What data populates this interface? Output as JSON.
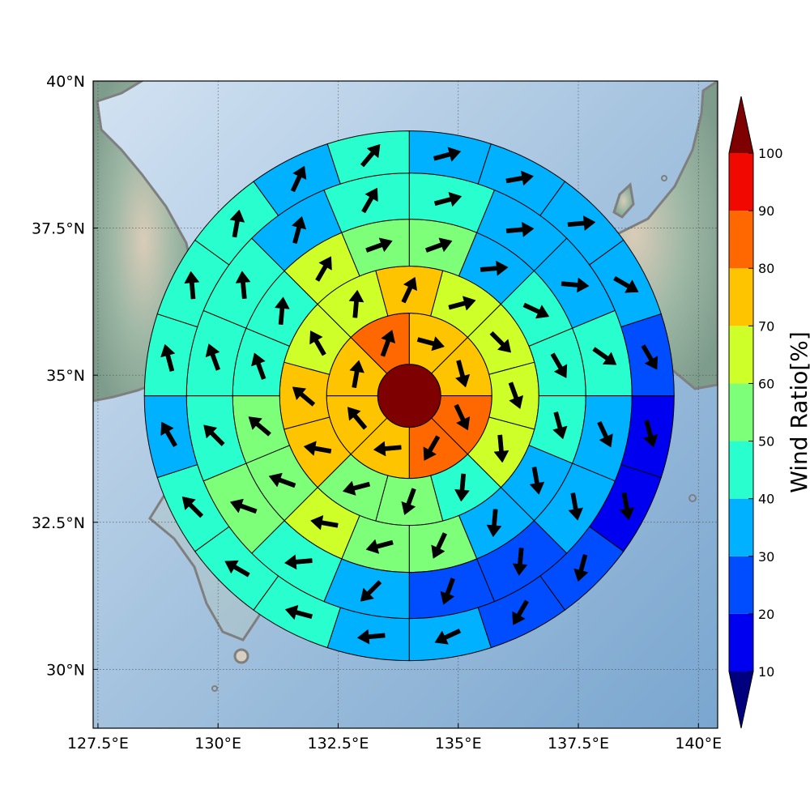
{
  "chart_data": {
    "type": "heatmap",
    "subtype": "polar-sector-map-with-wind-vectors",
    "title": "",
    "xlabel": "",
    "ylabel": "",
    "xlim": [
      127.4,
      140.4
    ],
    "ylim": [
      29.0,
      40.0
    ],
    "x_ticks": [
      127.5,
      130,
      132.5,
      135,
      137.5,
      140
    ],
    "x_tick_labels": [
      "127.5°E",
      "130°E",
      "132.5°E",
      "135°E",
      "137.5°E",
      "140°E"
    ],
    "y_ticks": [
      30,
      32.5,
      35,
      37.5,
      40
    ],
    "y_tick_labels": [
      "30°N",
      "32.5°N",
      "35°N",
      "37.5°N",
      "40°N"
    ],
    "grid": true,
    "background": "shaded-relief map with coastlines",
    "center": {
      "lon": 133.98,
      "lat": 34.65
    },
    "colorbar": {
      "label": "Wind Ratio[%]",
      "ticks": [
        10,
        20,
        30,
        40,
        50,
        60,
        70,
        80,
        90,
        100
      ],
      "extend": "both",
      "levels": [
        {
          "min": null,
          "max": 10,
          "color": "#00007f"
        },
        {
          "min": 10,
          "max": 20,
          "color": "#0000f1"
        },
        {
          "min": 20,
          "max": 30,
          "color": "#004dff"
        },
        {
          "min": 30,
          "max": 40,
          "color": "#00b1ff"
        },
        {
          "min": 40,
          "max": 50,
          "color": "#29ffce"
        },
        {
          "min": 50,
          "max": 60,
          "color": "#7dff7a"
        },
        {
          "min": 60,
          "max": 70,
          "color": "#ceff29"
        },
        {
          "min": 70,
          "max": 80,
          "color": "#ffc400"
        },
        {
          "min": 80,
          "max": 90,
          "color": "#ff6800"
        },
        {
          "min": 90,
          "max": 100,
          "color": "#f10800"
        },
        {
          "min": 100,
          "max": null,
          "color": "#7f0000"
        }
      ]
    },
    "center_cell": {
      "ratio": 100
    },
    "rings": [
      {
        "ring": 1,
        "sectors": 8,
        "ratio": [
          75,
          75,
          85,
          85,
          75,
          75,
          75,
          85
        ],
        "wind_dir_deg": [
          105,
          165,
          155,
          210,
          265,
          320,
          10,
          20
        ]
      },
      {
        "ring": 2,
        "sectors": 12,
        "ratio": [
          65,
          65,
          65,
          65,
          45,
          55,
          55,
          75,
          75,
          65,
          65,
          75
        ],
        "wind_dir_deg": [
          75,
          135,
          160,
          175,
          185,
          200,
          255,
          280,
          310,
          330,
          5,
          25
        ]
      },
      {
        "ring": 3,
        "sectors": 16,
        "ratio": [
          55,
          35,
          45,
          45,
          45,
          35,
          35,
          55,
          55,
          65,
          55,
          55,
          45,
          45,
          65,
          55
        ],
        "wind_dir_deg": [
          70,
          85,
          115,
          150,
          165,
          170,
          185,
          205,
          255,
          280,
          290,
          310,
          340,
          5,
          30,
          70
        ]
      },
      {
        "ring": 4,
        "sectors": 16,
        "ratio": [
          45,
          35,
          35,
          45,
          35,
          35,
          25,
          25,
          35,
          45,
          55,
          45,
          45,
          45,
          35,
          45
        ],
        "wind_dir_deg": [
          75,
          85,
          95,
          125,
          155,
          170,
          185,
          200,
          225,
          265,
          290,
          315,
          340,
          355,
          15,
          30
        ]
      },
      {
        "ring": 5,
        "sectors": 20,
        "ratio": [
          35,
          35,
          35,
          35,
          25,
          15,
          15,
          25,
          25,
          35,
          35,
          45,
          45,
          45,
          35,
          45,
          45,
          45,
          35,
          45
        ],
        "wind_dir_deg": [
          75,
          80,
          85,
          120,
          150,
          165,
          170,
          195,
          210,
          245,
          265,
          285,
          300,
          315,
          330,
          345,
          355,
          10,
          25,
          40
        ]
      }
    ]
  }
}
